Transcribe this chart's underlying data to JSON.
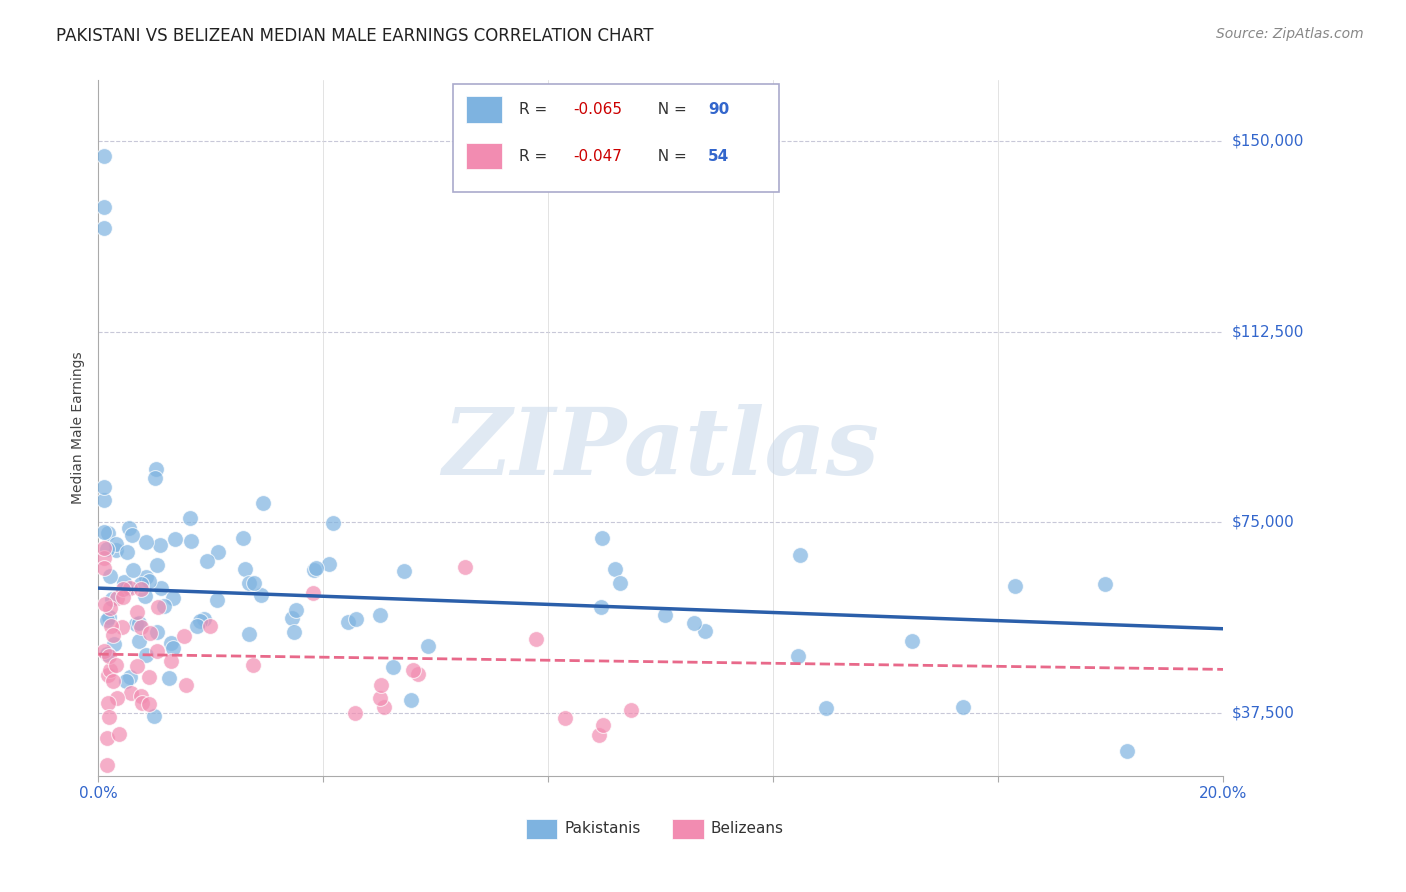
{
  "title": "PAKISTANI VS BELIZEAN MEDIAN MALE EARNINGS CORRELATION CHART",
  "source": "Source: ZipAtlas.com",
  "ylabel": "Median Male Earnings",
  "xlim": [
    0.0,
    0.2
  ],
  "ylim": [
    25000,
    162000
  ],
  "yticks": [
    37500,
    75000,
    112500,
    150000
  ],
  "ytick_labels": [
    "$37,500",
    "$75,000",
    "$112,500",
    "$150,000"
  ],
  "xticks": [
    0.0,
    0.04,
    0.08,
    0.12,
    0.16,
    0.2
  ],
  "xtick_labels": [
    "0.0%",
    "",
    "",
    "",
    "",
    "20.0%"
  ],
  "background_color": "#ffffff",
  "pakistani_color": "#7eb3e0",
  "belizean_color": "#f28cb1",
  "trend_pakistani_color": "#2b5faa",
  "trend_belizean_color": "#e8698a",
  "pak_trend_x0": 0.0,
  "pak_trend_x1": 0.2,
  "pak_trend_y0": 62000,
  "pak_trend_y1": 54000,
  "bel_trend_x0": 0.0,
  "bel_trend_x1": 0.2,
  "bel_trend_y0": 49000,
  "bel_trend_y1": 46000,
  "watermark_text": "ZIPatlas",
  "watermark_color": "#c8d8ea",
  "pak_n": 90,
  "bel_n": 54,
  "legend_r1": "R = ",
  "legend_v1": "-0.065",
  "legend_n1": "N = ",
  "legend_n1v": "90",
  "legend_r2": "R = ",
  "legend_v2": "-0.047",
  "legend_n2": "N = ",
  "legend_n2v": "54",
  "legend_val_color": "#cc0000",
  "legend_n_color": "#3366cc",
  "legend_text_color": "#333333",
  "axis_label_color": "#3366cc",
  "title_color": "#222222",
  "source_color": "#888888",
  "ylabel_color": "#444444"
}
